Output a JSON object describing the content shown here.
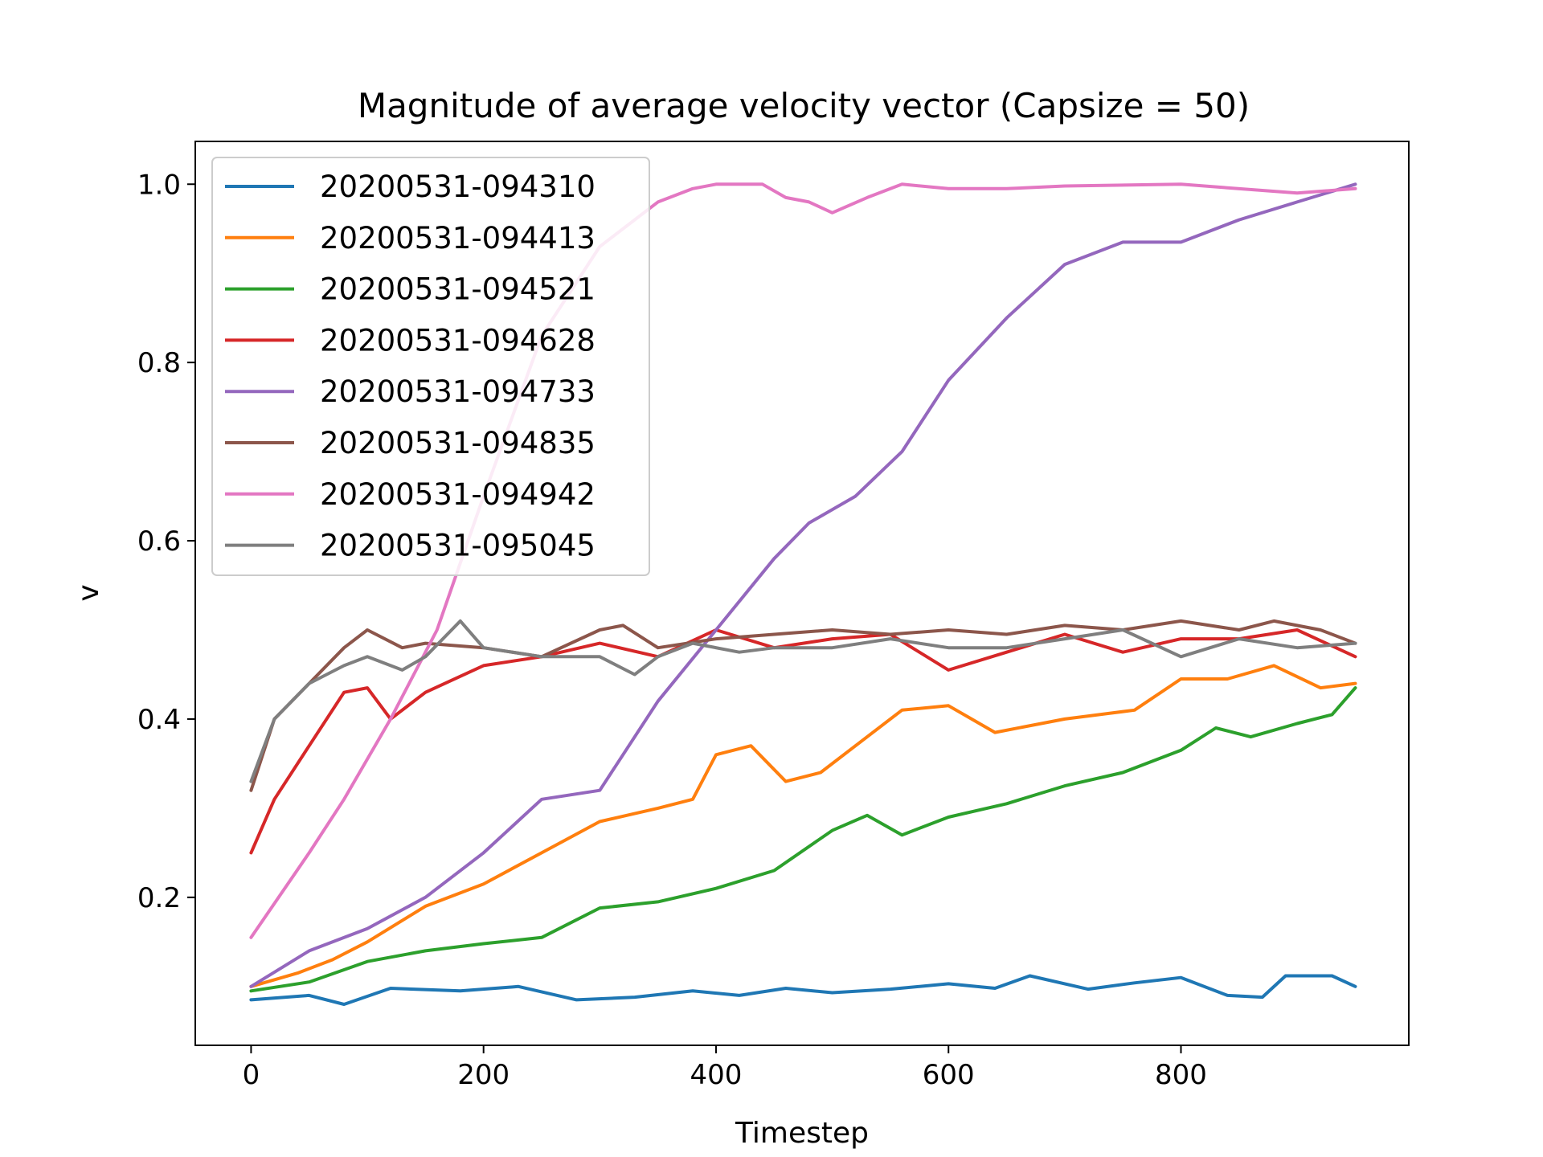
{
  "chart_data": {
    "type": "line",
    "title": "Magnitude of average velocity vector (Capsize = 50)",
    "xlabel": "Timestep",
    "ylabel": "v",
    "xlim": [
      -48,
      996
    ],
    "ylim": [
      0.034,
      1.048
    ],
    "x_ticks": [
      {
        "value": 0,
        "label": "0"
      },
      {
        "value": 200,
        "label": "200"
      },
      {
        "value": 400,
        "label": "400"
      },
      {
        "value": 600,
        "label": "600"
      },
      {
        "value": 800,
        "label": "800"
      }
    ],
    "y_ticks": [
      {
        "value": 0.2,
        "label": "0.2"
      },
      {
        "value": 0.4,
        "label": "0.4"
      },
      {
        "value": 0.6,
        "label": "0.6"
      },
      {
        "value": 0.8,
        "label": "0.8"
      },
      {
        "value": 1.0,
        "label": "1.0"
      }
    ],
    "grid": false,
    "legend_position": "upper-left",
    "series": [
      {
        "name": "20200531-094310",
        "color": "#1f77b4",
        "x": [
          0,
          50,
          80,
          120,
          180,
          230,
          280,
          330,
          380,
          420,
          460,
          500,
          550,
          600,
          640,
          670,
          720,
          760,
          800,
          840,
          870,
          890,
          930,
          950
        ],
        "y": [
          0.085,
          0.09,
          0.08,
          0.098,
          0.095,
          0.1,
          0.085,
          0.088,
          0.095,
          0.09,
          0.098,
          0.093,
          0.097,
          0.103,
          0.098,
          0.112,
          0.097,
          0.104,
          0.11,
          0.09,
          0.088,
          0.112,
          0.112,
          0.1
        ]
      },
      {
        "name": "20200531-094413",
        "color": "#ff7f0e",
        "x": [
          0,
          40,
          70,
          100,
          150,
          200,
          250,
          300,
          350,
          380,
          400,
          430,
          460,
          490,
          520,
          560,
          600,
          640,
          700,
          760,
          800,
          840,
          880,
          920,
          950
        ],
        "y": [
          0.1,
          0.115,
          0.13,
          0.15,
          0.19,
          0.215,
          0.25,
          0.285,
          0.3,
          0.31,
          0.36,
          0.37,
          0.33,
          0.34,
          0.37,
          0.41,
          0.415,
          0.385,
          0.4,
          0.41,
          0.445,
          0.445,
          0.46,
          0.435,
          0.44
        ]
      },
      {
        "name": "20200531-094521",
        "color": "#2ca02c",
        "x": [
          0,
          50,
          100,
          150,
          200,
          250,
          300,
          350,
          400,
          450,
          500,
          530,
          560,
          600,
          650,
          700,
          750,
          800,
          830,
          860,
          900,
          930,
          950
        ],
        "y": [
          0.095,
          0.105,
          0.128,
          0.14,
          0.148,
          0.155,
          0.188,
          0.195,
          0.21,
          0.23,
          0.275,
          0.292,
          0.27,
          0.29,
          0.305,
          0.325,
          0.34,
          0.365,
          0.39,
          0.38,
          0.395,
          0.405,
          0.435
        ]
      },
      {
        "name": "20200531-094628",
        "color": "#d62728",
        "x": [
          0,
          20,
          50,
          80,
          100,
          120,
          150,
          200,
          250,
          300,
          350,
          400,
          450,
          500,
          550,
          600,
          650,
          700,
          750,
          800,
          850,
          900,
          950
        ],
        "y": [
          0.25,
          0.31,
          0.37,
          0.43,
          0.435,
          0.4,
          0.43,
          0.46,
          0.47,
          0.485,
          0.47,
          0.5,
          0.48,
          0.49,
          0.495,
          0.455,
          0.475,
          0.495,
          0.475,
          0.49,
          0.49,
          0.5,
          0.47
        ]
      },
      {
        "name": "20200531-094733",
        "color": "#9467bd",
        "x": [
          0,
          50,
          100,
          150,
          200,
          250,
          300,
          350,
          400,
          450,
          480,
          520,
          560,
          600,
          650,
          700,
          750,
          800,
          850,
          900,
          950
        ],
        "y": [
          0.1,
          0.14,
          0.165,
          0.2,
          0.25,
          0.31,
          0.32,
          0.42,
          0.5,
          0.58,
          0.62,
          0.65,
          0.7,
          0.78,
          0.85,
          0.91,
          0.935,
          0.935,
          0.96,
          0.98,
          1.0
        ]
      },
      {
        "name": "20200531-094835",
        "color": "#8c564b",
        "x": [
          0,
          20,
          50,
          80,
          100,
          130,
          150,
          200,
          250,
          300,
          320,
          350,
          400,
          450,
          500,
          550,
          600,
          650,
          700,
          750,
          800,
          850,
          880,
          920,
          950
        ],
        "y": [
          0.32,
          0.4,
          0.44,
          0.48,
          0.5,
          0.48,
          0.485,
          0.48,
          0.47,
          0.5,
          0.505,
          0.48,
          0.49,
          0.495,
          0.5,
          0.495,
          0.5,
          0.495,
          0.505,
          0.5,
          0.51,
          0.5,
          0.51,
          0.5,
          0.485
        ]
      },
      {
        "name": "20200531-094942",
        "color": "#e377c2",
        "x": [
          0,
          50,
          80,
          120,
          160,
          200,
          250,
          300,
          350,
          380,
          400,
          440,
          460,
          480,
          500,
          530,
          560,
          600,
          650,
          700,
          800,
          900,
          950
        ],
        "y": [
          0.155,
          0.25,
          0.31,
          0.4,
          0.5,
          0.65,
          0.83,
          0.93,
          0.98,
          0.995,
          1.0,
          1.0,
          0.985,
          0.98,
          0.968,
          0.985,
          1.0,
          0.995,
          0.995,
          0.998,
          1.0,
          0.99,
          0.995
        ]
      },
      {
        "name": "20200531-095045",
        "color": "#7f7f7f",
        "x": [
          0,
          20,
          50,
          80,
          100,
          130,
          150,
          180,
          200,
          250,
          300,
          330,
          350,
          380,
          420,
          450,
          500,
          550,
          600,
          650,
          700,
          750,
          800,
          850,
          900,
          950
        ],
        "y": [
          0.33,
          0.4,
          0.44,
          0.46,
          0.47,
          0.455,
          0.47,
          0.51,
          0.48,
          0.47,
          0.47,
          0.45,
          0.47,
          0.485,
          0.475,
          0.48,
          0.48,
          0.49,
          0.48,
          0.48,
          0.49,
          0.5,
          0.47,
          0.49,
          0.48,
          0.485
        ]
      }
    ]
  }
}
